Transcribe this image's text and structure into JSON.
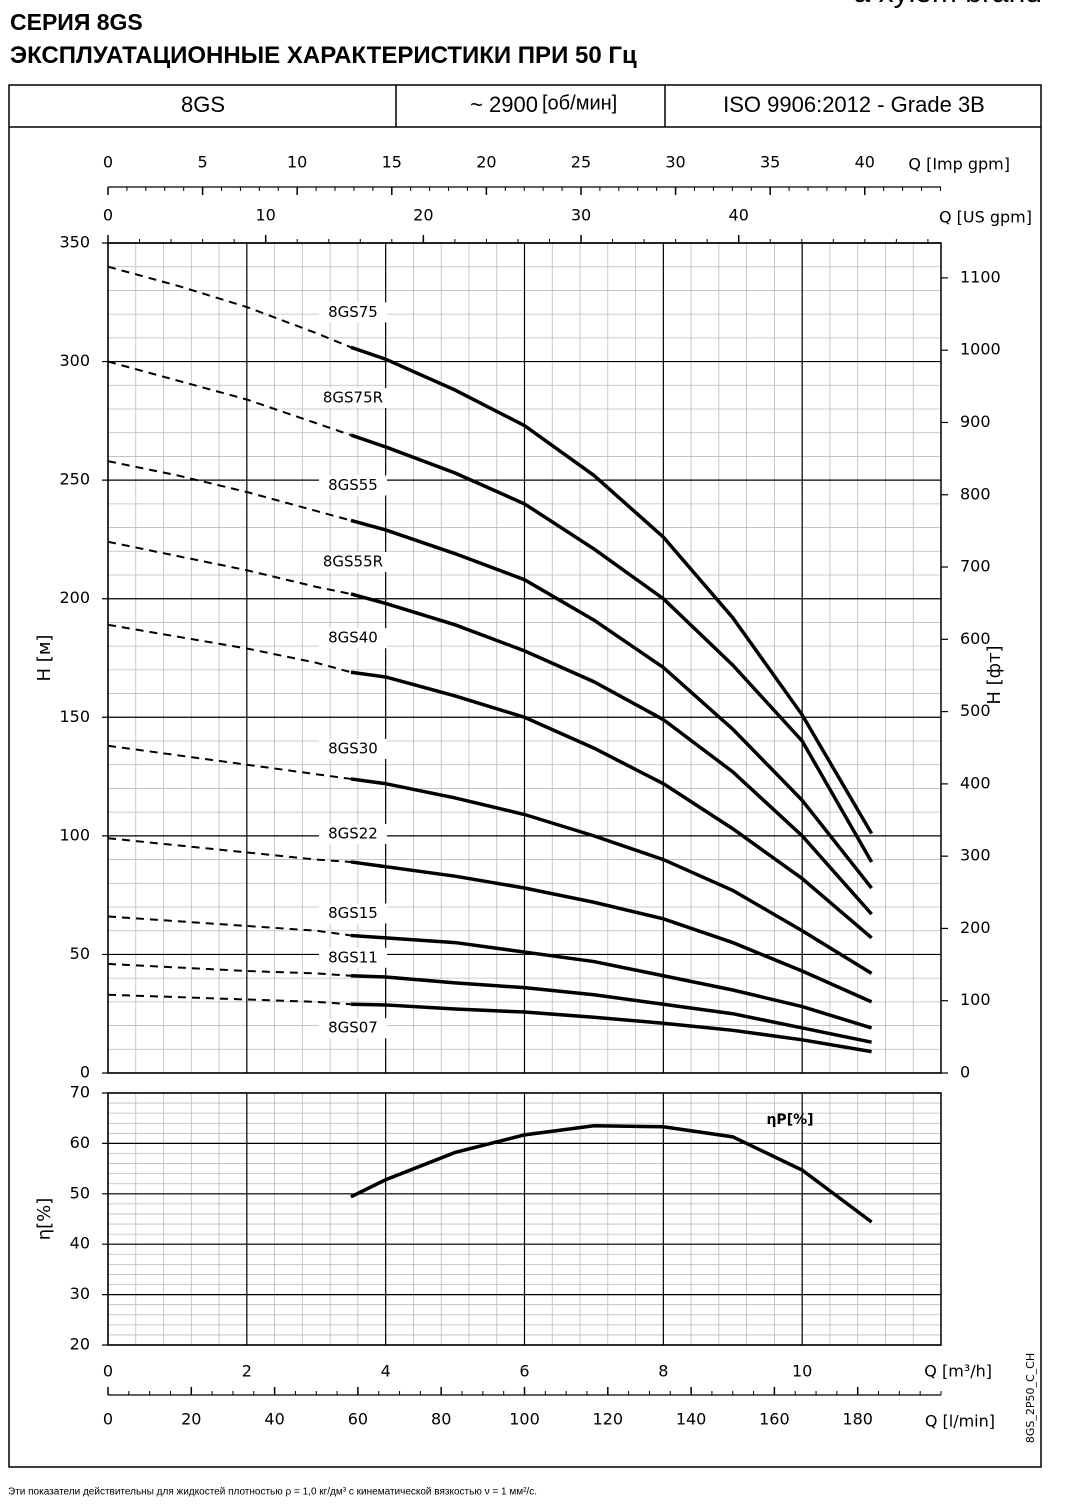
{
  "header": {
    "series_title": "СЕРИЯ 8GS",
    "title": "ЭКСПЛУАТАЦИОННЫЕ ХАРАКТЕРИСТИКИ ПРИ 50 Гц",
    "brand": "a xylem brand"
  },
  "info_bar": {
    "model": "8GS",
    "speed": "~ 2900",
    "speed_unit": "[об/мин]",
    "standard": "ISO 9906:2012 - Grade 3B"
  },
  "chart_data": [
    {
      "type": "line",
      "ylabel": "H [м]",
      "y2label": "H [фт]",
      "x": [
        0,
        1,
        2,
        3,
        3.5,
        4,
        5,
        6,
        7,
        8,
        9,
        10,
        11
      ],
      "xlim": [
        0,
        12
      ],
      "xticks": [
        0,
        2,
        4,
        6,
        8,
        10
      ],
      "ylim": [
        0,
        350
      ],
      "yticks": [
        0,
        50,
        100,
        150,
        200,
        250,
        300,
        350
      ],
      "y2lim": [
        0,
        1148.3
      ],
      "y2ticks": [
        0,
        100,
        200,
        300,
        400,
        500,
        600,
        700,
        800,
        900,
        1000,
        1100
      ],
      "grid": true,
      "minor_grid": {
        "x": 0.4,
        "y": 10
      },
      "dashed_range": [
        0,
        3.5
      ],
      "secondary_x_axes": [
        {
          "label": "Q [Imp gpm]",
          "lim": [
            0,
            44.03
          ],
          "ticks": [
            0,
            5,
            10,
            15,
            20,
            25,
            30,
            35,
            40
          ],
          "minor": 1
        },
        {
          "label": "Q [US gpm]",
          "lim": [
            0,
            52.83
          ],
          "ticks": [
            0,
            10,
            20,
            30,
            40
          ],
          "minor": 2
        }
      ],
      "series": [
        {
          "name": "8GS75",
          "color": "#000000",
          "values": [
            340,
            332,
            323,
            312,
            306,
            301,
            288,
            273,
            252,
            226,
            192,
            151,
            101
          ]
        },
        {
          "name": "8GS75R",
          "color": "#000000",
          "values": [
            300,
            292,
            284,
            274,
            269,
            264,
            253,
            240,
            221,
            200,
            172,
            140,
            89
          ]
        },
        {
          "name": "8GS55",
          "color": "#000000",
          "values": [
            258,
            252,
            245,
            237,
            233,
            229,
            219,
            208,
            191,
            171,
            145,
            115,
            78
          ]
        },
        {
          "name": "8GS55R",
          "color": "#000000",
          "values": [
            224,
            218,
            212,
            205,
            202,
            198,
            189,
            178,
            165,
            149,
            127,
            100,
            67
          ]
        },
        {
          "name": "8GS40",
          "color": "#000000",
          "values": [
            189,
            184,
            179,
            173,
            169,
            167,
            159,
            150,
            137,
            122,
            103,
            82,
            57
          ]
        },
        {
          "name": "8GS30",
          "color": "#000000",
          "values": [
            138,
            134,
            130,
            126,
            124,
            122,
            116,
            109,
            100,
            90,
            77,
            60,
            42
          ]
        },
        {
          "name": "8GS22",
          "color": "#000000",
          "values": [
            99,
            96,
            93,
            90,
            89,
            87,
            83,
            78,
            72,
            65,
            55,
            43,
            30
          ]
        },
        {
          "name": "8GS15",
          "color": "#000000",
          "values": [
            66,
            64,
            62,
            60,
            58,
            57,
            55,
            51,
            47,
            41,
            35,
            28,
            19
          ]
        },
        {
          "name": "8GS11",
          "color": "#000000",
          "values": [
            46,
            44.5,
            43,
            42,
            41,
            40.5,
            38,
            36,
            33,
            29,
            25,
            19,
            13
          ]
        },
        {
          "name": "8GS07",
          "color": "#000000",
          "values": [
            33,
            32,
            31,
            30,
            29,
            28.7,
            27,
            25.7,
            23.5,
            21,
            18,
            14,
            9
          ]
        }
      ]
    },
    {
      "type": "line",
      "ylabel": "η[%]",
      "xlabel": "Q [m³/h]",
      "x": [
        3.5,
        4,
        5,
        6,
        7,
        8,
        9,
        10,
        11
      ],
      "xlim": [
        0,
        12
      ],
      "xticks": [
        0,
        2,
        4,
        6,
        8,
        10
      ],
      "ylim": [
        20,
        70
      ],
      "yticks": [
        20,
        30,
        40,
        50,
        60,
        70
      ],
      "grid": true,
      "minor_grid": {
        "x": 0.4,
        "y": 2
      },
      "secondary_x_axes": [
        {
          "label": "Q [l/min]",
          "lim": [
            0,
            200
          ],
          "ticks": [
            0,
            20,
            40,
            60,
            80,
            100,
            120,
            140,
            160,
            180
          ],
          "minor": 5
        }
      ],
      "series": [
        {
          "name": "ηP[%]",
          "color": "#000000",
          "values": [
            49.4,
            52.8,
            58.2,
            61.7,
            63.5,
            63.3,
            61.3,
            54.7,
            44.4
          ]
        }
      ]
    }
  ],
  "footnote": "Эти показатели действительны для жидкостей плотностью ρ = 1,0 кг/дм³ с кинематической вязкостью ν = 1 мм²/с.",
  "doc_code": "8GS_2P50_C_CH"
}
